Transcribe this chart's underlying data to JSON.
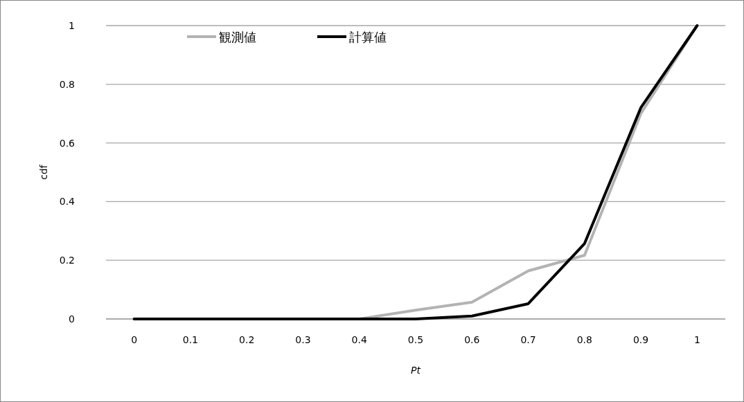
{
  "chart_data": {
    "type": "line",
    "xlabel": "Pt",
    "ylabel": "cdf",
    "categories": [
      "0",
      "0.1",
      "0.2",
      "0.3",
      "0.4",
      "0.5",
      "0.6",
      "0.7",
      "0.8",
      "0.9",
      "1"
    ],
    "series": [
      {
        "name": "観測値",
        "color": "#b3b3b3",
        "values": [
          0,
          0,
          0,
          0,
          0,
          0.03,
          0.057,
          0.164,
          0.217,
          0.7,
          1
        ]
      },
      {
        "name": "計算値",
        "color": "#000000",
        "values": [
          0,
          0,
          0,
          0,
          0,
          0,
          0.01,
          0.052,
          0.257,
          0.72,
          1
        ]
      }
    ],
    "ylim": [
      0,
      1
    ],
    "yticks": [
      0,
      0.2,
      0.4,
      0.6,
      0.8,
      1
    ],
    "grid": "y",
    "legend": "top left",
    "marker": "none",
    "line_style": "solid"
  }
}
